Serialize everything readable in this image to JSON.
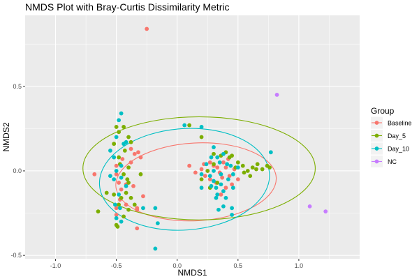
{
  "chart_data": {
    "type": "scatter",
    "title": "NMDS Plot with Bray-Curtis Dissimilarity Metric",
    "xlabel": "NMDS1",
    "ylabel": "NMDS2",
    "xlim": [
      -1.25,
      1.5
    ],
    "ylim": [
      -0.52,
      0.92
    ],
    "x_ticks": [
      -1.0,
      -0.5,
      0.0,
      0.5,
      1.0
    ],
    "x_tick_labels": [
      "-1.0",
      "-0.5",
      "0.0",
      "0.5",
      "1.0"
    ],
    "y_ticks": [
      -0.5,
      0.0,
      0.5
    ],
    "y_tick_labels": [
      "-0.5",
      "0.0",
      "0.5"
    ],
    "grid": true,
    "legend": {
      "title": "Group",
      "placement": "right",
      "entries": [
        "Baseline",
        "Day_5",
        "Day_10",
        "NC"
      ]
    },
    "series": [
      {
        "name": "Baseline",
        "color": "#F8766D",
        "points": [
          [
            -0.25,
            0.84
          ],
          [
            -0.68,
            -0.02
          ],
          [
            -0.5,
            -0.02
          ],
          [
            -0.42,
            -0.2
          ],
          [
            -0.33,
            -0.34
          ],
          [
            -0.33,
            -0.23
          ],
          [
            -0.45,
            0.07
          ],
          [
            -0.35,
            0.1
          ],
          [
            -0.32,
            0.11
          ],
          [
            -0.3,
            0.08
          ],
          [
            -0.38,
            0.05
          ],
          [
            -0.38,
            0.13
          ],
          [
            -0.42,
            -0.08
          ],
          [
            -0.5,
            0.03
          ],
          [
            -0.36,
            -0.09
          ],
          [
            -0.28,
            -0.15
          ],
          [
            -0.33,
            -0.22
          ],
          [
            -0.5,
            -0.26
          ],
          [
            -0.5,
            -0.22
          ],
          [
            -0.47,
            -0.17
          ],
          [
            -0.48,
            -0.07
          ],
          [
            -0.46,
            -0.11
          ],
          [
            0.1,
            0.03
          ],
          [
            0.15,
            -0.01
          ],
          [
            0.2,
            0.01
          ],
          [
            0.23,
            -0.03
          ],
          [
            0.27,
            -0.05
          ],
          [
            0.3,
            0.03
          ],
          [
            0.33,
            0.02
          ],
          [
            0.35,
            -0.01
          ],
          [
            0.37,
            -0.04
          ],
          [
            0.4,
            0.02
          ],
          [
            0.43,
            -0.03
          ],
          [
            0.47,
            0.01
          ],
          [
            0.5,
            -0.05
          ],
          [
            0.45,
            -0.08
          ],
          [
            0.38,
            0.05
          ],
          [
            0.32,
            -0.07
          ],
          [
            0.27,
            0.05
          ],
          [
            0.22,
            0.04
          ],
          [
            0.4,
            -0.1
          ],
          [
            0.36,
            -0.14
          ],
          [
            0.42,
            0.07
          ],
          [
            0.25,
            0.0
          ]
        ]
      },
      {
        "name": "Day_5",
        "color": "#7CAE00",
        "points": [
          [
            -0.5,
            0.26
          ],
          [
            -0.48,
            0.23
          ],
          [
            -0.44,
            0.26
          ],
          [
            -0.4,
            0.2
          ],
          [
            -0.38,
            0.17
          ],
          [
            -0.43,
            0.12
          ],
          [
            -0.48,
            0.08
          ],
          [
            -0.52,
            0.16
          ],
          [
            -0.47,
            0.04
          ],
          [
            -0.4,
            0.02
          ],
          [
            -0.44,
            -0.02
          ],
          [
            -0.58,
            -0.13
          ],
          [
            -0.65,
            -0.24
          ],
          [
            -0.52,
            -0.14
          ],
          [
            -0.46,
            -0.16
          ],
          [
            -0.42,
            -0.13
          ],
          [
            -0.4,
            -0.23
          ],
          [
            -0.44,
            -0.27
          ],
          [
            -0.5,
            -0.32
          ],
          [
            -0.49,
            -0.33
          ],
          [
            -0.38,
            -0.16
          ],
          [
            -0.41,
            -0.05
          ],
          [
            -0.4,
            -0.07
          ],
          [
            -0.35,
            -0.2
          ],
          [
            -0.3,
            -0.02
          ],
          [
            -0.48,
            -0.2
          ],
          [
            0.1,
            0.27
          ],
          [
            0.2,
            -0.05
          ],
          [
            0.25,
            0.0
          ],
          [
            0.3,
            0.04
          ],
          [
            0.36,
            0.09
          ],
          [
            0.4,
            0.11
          ],
          [
            0.45,
            0.09
          ],
          [
            0.5,
            0.05
          ],
          [
            0.54,
            0.03
          ],
          [
            0.58,
            0.0
          ],
          [
            0.62,
            0.02
          ],
          [
            0.66,
            0.04
          ],
          [
            0.7,
            0.01
          ],
          [
            0.74,
            0.03
          ],
          [
            0.76,
            0.02
          ],
          [
            0.65,
            0.01
          ],
          [
            0.55,
            -0.01
          ],
          [
            0.6,
            -0.03
          ],
          [
            0.48,
            0.02
          ],
          [
            0.43,
            0.08
          ],
          [
            0.3,
            0.1
          ],
          [
            0.2,
            0.2
          ],
          [
            0.33,
            -0.07
          ],
          [
            0.27,
            -0.1
          ]
        ]
      },
      {
        "name": "Day_10",
        "color": "#00BFC4",
        "points": [
          [
            -0.46,
            0.34
          ],
          [
            -0.48,
            0.3
          ],
          [
            -0.52,
            0.08
          ],
          [
            -0.46,
            0.03
          ],
          [
            -0.5,
            0.0
          ],
          [
            -0.55,
            -0.03
          ],
          [
            -0.52,
            -0.05
          ],
          [
            -0.46,
            -0.04
          ],
          [
            -0.48,
            -0.14
          ],
          [
            -0.51,
            -0.2
          ],
          [
            -0.47,
            -0.22
          ],
          [
            -0.5,
            -0.28
          ],
          [
            -0.46,
            -0.3
          ],
          [
            -0.42,
            -0.09
          ],
          [
            -0.44,
            0.16
          ],
          [
            -0.5,
            0.2
          ],
          [
            -0.55,
            0.12
          ],
          [
            -0.42,
            0.17
          ],
          [
            -0.28,
            -0.22
          ],
          [
            -0.18,
            -0.22
          ],
          [
            -0.16,
            -0.31
          ],
          [
            -0.18,
            -0.46
          ],
          [
            0.06,
            0.27
          ],
          [
            0.2,
            0.26
          ],
          [
            0.3,
            0.14
          ],
          [
            0.33,
            0.08
          ],
          [
            0.38,
            0.1
          ],
          [
            0.35,
            0.05
          ],
          [
            0.3,
            0.0
          ],
          [
            0.27,
            -0.03
          ],
          [
            0.3,
            -0.06
          ],
          [
            0.32,
            -0.1
          ],
          [
            0.33,
            -0.14
          ],
          [
            0.36,
            -0.08
          ],
          [
            0.38,
            -0.12
          ],
          [
            0.42,
            -0.05
          ],
          [
            0.46,
            -0.02
          ],
          [
            0.5,
            0.02
          ],
          [
            0.44,
            0.03
          ],
          [
            0.28,
            0.08
          ],
          [
            0.24,
            0.04
          ],
          [
            0.2,
            -0.02
          ],
          [
            0.36,
            -0.02
          ],
          [
            0.41,
            0.04
          ],
          [
            0.32,
            -0.16
          ],
          [
            0.4,
            -0.16
          ],
          [
            0.46,
            -0.1
          ],
          [
            0.28,
            -0.09
          ],
          [
            0.45,
            -0.22
          ],
          [
            0.38,
            -0.21
          ],
          [
            0.34,
            -0.23
          ],
          [
            0.45,
            -0.26
          ],
          [
            0.77,
            0.11
          ],
          [
            0.2,
            -0.1
          ]
        ]
      },
      {
        "name": "NC",
        "color": "#C77CFF",
        "points": [
          [
            0.82,
            0.45
          ],
          [
            1.09,
            -0.21
          ],
          [
            1.22,
            -0.24
          ]
        ]
      }
    ],
    "ellipses": [
      {
        "series": "Baseline",
        "cx": 0.155,
        "cy": -0.065,
        "rx": 0.66,
        "ry": 0.23,
        "angle_deg": 3
      },
      {
        "series": "Day_5",
        "cx": 0.18,
        "cy": 0.015,
        "rx": 0.955,
        "ry": 0.305,
        "angle_deg": 0
      },
      {
        "series": "Day_10",
        "cx": 0.06,
        "cy": -0.05,
        "rx": 0.7,
        "ry": 0.3,
        "angle_deg": 4
      }
    ]
  }
}
